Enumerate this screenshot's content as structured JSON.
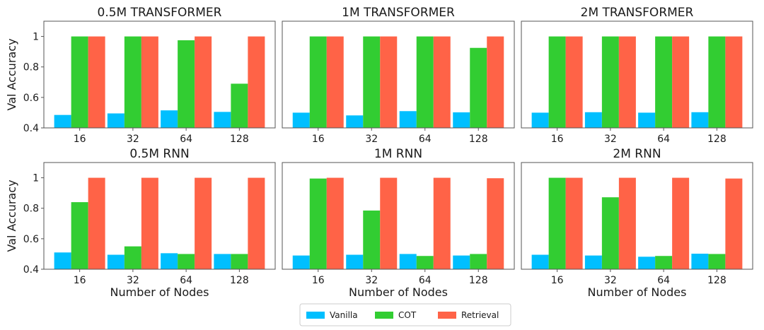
{
  "legend": {
    "items": [
      {
        "label": "Vanilla",
        "color": "#00BFFF"
      },
      {
        "label": "COT",
        "color": "#32CD32"
      },
      {
        "label": "Retrieval",
        "color": "#FF6347"
      }
    ]
  },
  "chart_data": [
    {
      "type": "bar",
      "title": "0.5M TRANSFORMER",
      "xlabel": "",
      "ylabel": "Val Accuracy",
      "categories": [
        "16",
        "32",
        "64",
        "128"
      ],
      "ylim": [
        0.4,
        1.1
      ],
      "yticks": [
        0.4,
        0.6,
        0.8,
        1
      ],
      "series": [
        {
          "name": "Vanilla",
          "values": [
            0.485,
            0.495,
            0.515,
            0.505
          ]
        },
        {
          "name": "COT",
          "values": [
            1.0,
            1.0,
            0.975,
            0.69
          ]
        },
        {
          "name": "Retrieval",
          "values": [
            1.0,
            1.0,
            1.0,
            1.0
          ]
        }
      ]
    },
    {
      "type": "bar",
      "title": "1M TRANSFORMER",
      "xlabel": "",
      "ylabel": "",
      "categories": [
        "16",
        "32",
        "64",
        "128"
      ],
      "ylim": [
        0.4,
        1.1
      ],
      "yticks": [],
      "series": [
        {
          "name": "Vanilla",
          "values": [
            0.5,
            0.482,
            0.51,
            0.502
          ]
        },
        {
          "name": "COT",
          "values": [
            1.0,
            1.0,
            1.0,
            0.925
          ]
        },
        {
          "name": "Retrieval",
          "values": [
            1.0,
            1.0,
            1.0,
            1.0
          ]
        }
      ]
    },
    {
      "type": "bar",
      "title": "2M TRANSFORMER",
      "xlabel": "",
      "ylabel": "",
      "categories": [
        "16",
        "32",
        "64",
        "128"
      ],
      "ylim": [
        0.4,
        1.1
      ],
      "yticks": [],
      "series": [
        {
          "name": "Vanilla",
          "values": [
            0.5,
            0.503,
            0.5,
            0.503
          ]
        },
        {
          "name": "COT",
          "values": [
            1.0,
            1.0,
            1.0,
            1.0
          ]
        },
        {
          "name": "Retrieval",
          "values": [
            1.0,
            1.0,
            1.0,
            1.0
          ]
        }
      ]
    },
    {
      "type": "bar",
      "title": "0.5M RNN",
      "xlabel": "Number of Nodes",
      "ylabel": "Val Accuracy",
      "categories": [
        "16",
        "32",
        "64",
        "128"
      ],
      "ylim": [
        0.4,
        1.1
      ],
      "yticks": [
        0.4,
        0.6,
        0.8,
        1
      ],
      "series": [
        {
          "name": "Vanilla",
          "values": [
            0.51,
            0.495,
            0.505,
            0.5
          ]
        },
        {
          "name": "COT",
          "values": [
            0.84,
            0.55,
            0.5,
            0.5
          ]
        },
        {
          "name": "Retrieval",
          "values": [
            1.0,
            1.0,
            1.0,
            1.0
          ]
        }
      ]
    },
    {
      "type": "bar",
      "title": "1M RNN",
      "xlabel": "Number of Nodes",
      "ylabel": "",
      "categories": [
        "16",
        "32",
        "64",
        "128"
      ],
      "ylim": [
        0.4,
        1.1
      ],
      "yticks": [],
      "series": [
        {
          "name": "Vanilla",
          "values": [
            0.49,
            0.495,
            0.5,
            0.49
          ]
        },
        {
          "name": "COT",
          "values": [
            0.995,
            0.785,
            0.487,
            0.5
          ]
        },
        {
          "name": "Retrieval",
          "values": [
            1.0,
            1.0,
            1.0,
            0.997
          ]
        }
      ]
    },
    {
      "type": "bar",
      "title": "2M RNN",
      "xlabel": "Number of Nodes",
      "ylabel": "",
      "categories": [
        "16",
        "32",
        "64",
        "128"
      ],
      "ylim": [
        0.4,
        1.1
      ],
      "yticks": [],
      "series": [
        {
          "name": "Vanilla",
          "values": [
            0.495,
            0.49,
            0.482,
            0.502
          ]
        },
        {
          "name": "COT",
          "values": [
            1.0,
            0.872,
            0.487,
            0.5
          ]
        },
        {
          "name": "Retrieval",
          "values": [
            1.0,
            1.0,
            1.0,
            0.995
          ]
        }
      ]
    }
  ]
}
